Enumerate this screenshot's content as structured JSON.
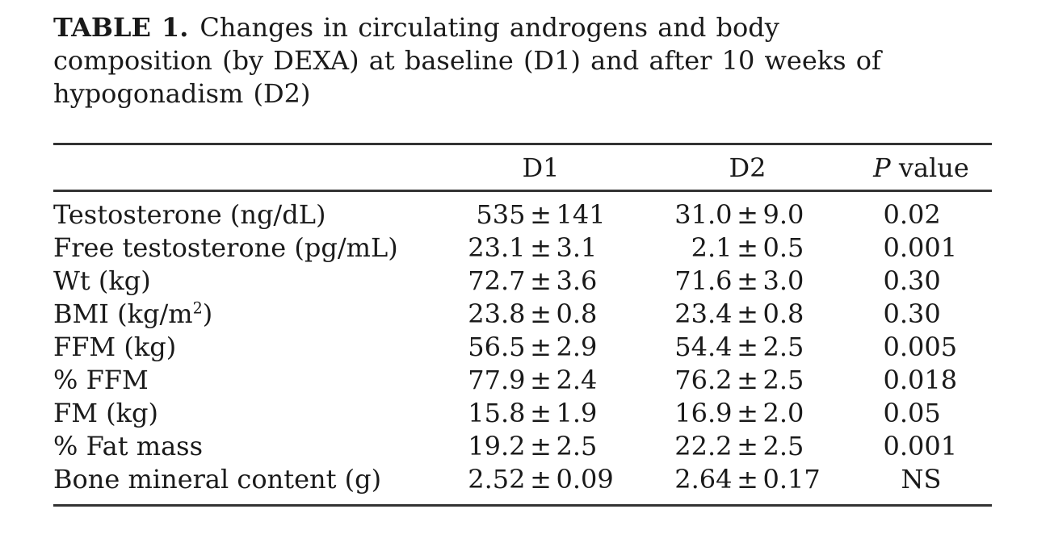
{
  "caption": {
    "label": "TABLE 1.",
    "line1": "Changes in circulating androgens and body",
    "line2": "composition (by DEXA) at baseline (D1) and after 10 weeks of",
    "line3": "hypogonadism (D2)"
  },
  "symbols": {
    "plus_minus": "±"
  },
  "table": {
    "columns": {
      "label": "",
      "d1": "D1",
      "d2": "D2",
      "p_italic": "P",
      "p_rest": "value"
    },
    "rows": [
      {
        "label": "Testosterone (ng/dL)",
        "d1": {
          "mean": "535",
          "sd": "141"
        },
        "d2": {
          "mean": "31.0",
          "sd": "9.0"
        },
        "p": "0.02"
      },
      {
        "label": "Free testosterone (pg/mL)",
        "d1": {
          "mean": "23.1",
          "sd": "3.1"
        },
        "d2": {
          "mean": "2.1",
          "sd": "0.5"
        },
        "p": "0.001"
      },
      {
        "label": "Wt (kg)",
        "d1": {
          "mean": "72.7",
          "sd": "3.6"
        },
        "d2": {
          "mean": "71.6",
          "sd": "3.0"
        },
        "p": "0.30"
      },
      {
        "label_pre": "BMI (kg/m",
        "label_sup": "2",
        "label_post": ")",
        "d1": {
          "mean": "23.8",
          "sd": "0.8"
        },
        "d2": {
          "mean": "23.4",
          "sd": "0.8"
        },
        "p": "0.30"
      },
      {
        "label": "FFM (kg)",
        "d1": {
          "mean": "56.5",
          "sd": "2.9"
        },
        "d2": {
          "mean": "54.4",
          "sd": "2.5"
        },
        "p": "0.005"
      },
      {
        "label": "% FFM",
        "d1": {
          "mean": "77.9",
          "sd": "2.4"
        },
        "d2": {
          "mean": "76.2",
          "sd": "2.5"
        },
        "p": "0.018"
      },
      {
        "label": "FM (kg)",
        "d1": {
          "mean": "15.8",
          "sd": "1.9"
        },
        "d2": {
          "mean": "16.9",
          "sd": "2.0"
        },
        "p": "0.05"
      },
      {
        "label": "% Fat mass",
        "d1": {
          "mean": "19.2",
          "sd": "2.5"
        },
        "d2": {
          "mean": "22.2",
          "sd": "2.5"
        },
        "p": "0.001"
      },
      {
        "label": "Bone mineral content (g)",
        "d1": {
          "mean": "2.52",
          "sd": "0.09"
        },
        "d2": {
          "mean": "2.64",
          "sd": "0.17"
        },
        "p": "NS"
      }
    ]
  }
}
